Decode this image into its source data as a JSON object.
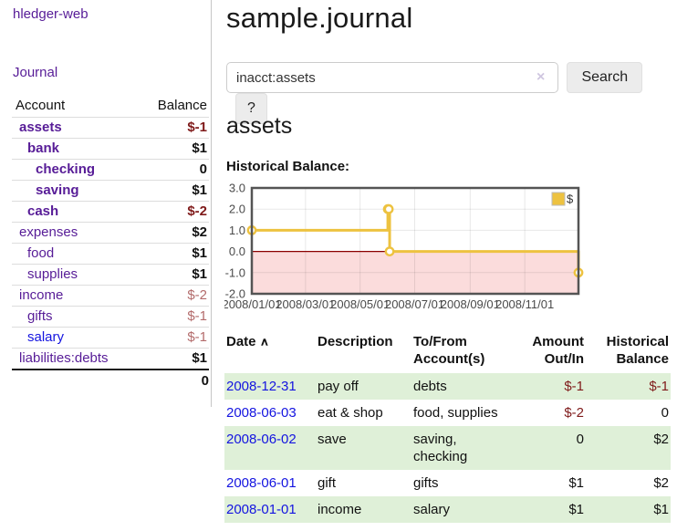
{
  "app": {
    "brand": "hledger-web"
  },
  "colors": {
    "link_purple": "#571c97",
    "link_blue": "#1414e0",
    "negative_dark": "#7f1a1a",
    "negative_soft": "#b36b6b",
    "row_green": "#dff0d8",
    "button_bg": "#ececec",
    "chart_gold": "#edc240"
  },
  "sidebar": {
    "journal_link": "Journal",
    "accounts": {
      "col_account": "Account",
      "col_balance": "Balance",
      "rows": [
        {
          "account": "assets",
          "depth": 1,
          "bold": true,
          "blue": false,
          "balance": "$-1",
          "balance_class": "bneg"
        },
        {
          "account": "bank",
          "depth": 2,
          "bold": true,
          "blue": false,
          "balance": "$1",
          "balance_class": "bpos"
        },
        {
          "account": "checking",
          "depth": 3,
          "bold": true,
          "blue": false,
          "balance": "0",
          "balance_class": "bpos"
        },
        {
          "account": "saving",
          "depth": 3,
          "bold": true,
          "blue": false,
          "balance": "$1",
          "balance_class": "bpos"
        },
        {
          "account": "cash",
          "depth": 2,
          "bold": true,
          "blue": false,
          "balance": "$-2",
          "balance_class": "bneg"
        },
        {
          "account": "expenses",
          "depth": 1,
          "bold": false,
          "blue": false,
          "balance": "$2",
          "balance_class": "pos"
        },
        {
          "account": "food",
          "depth": 2,
          "bold": false,
          "blue": false,
          "balance": "$1",
          "balance_class": "pos"
        },
        {
          "account": "supplies",
          "depth": 2,
          "bold": false,
          "blue": false,
          "balance": "$1",
          "balance_class": "pos"
        },
        {
          "account": "income",
          "depth": 1,
          "bold": false,
          "blue": false,
          "balance": "$-2",
          "balance_class": "negsoft"
        },
        {
          "account": "gifts",
          "depth": 2,
          "bold": false,
          "blue": false,
          "balance": "$-1",
          "balance_class": "negsoft"
        },
        {
          "account": "salary",
          "depth": 2,
          "bold": false,
          "blue": true,
          "balance": "$-1",
          "balance_class": "negsoft"
        },
        {
          "account": "liabilities:debts",
          "depth": 1,
          "bold": false,
          "blue": false,
          "balance": "$1",
          "balance_class": "pos"
        }
      ],
      "total": "0"
    }
  },
  "main": {
    "title": "sample.journal",
    "search": {
      "value": "inacct:assets",
      "clear_icon": "×",
      "search_button": "Search",
      "help_button": "?"
    },
    "account_heading": "assets",
    "chart_heading": "Historical Balance:",
    "register": {
      "columns": {
        "date": "Date",
        "description": "Description",
        "accounts": "To/From Account(s)",
        "amount": "Amount Out/In",
        "balance": "Historical Balance"
      },
      "sort_indicator": "∧",
      "rows": [
        {
          "date": "2008-12-31",
          "description": "pay off",
          "accounts": "debts",
          "amount": "$-1",
          "amount_neg": true,
          "balance": "$-1",
          "balance_neg": true
        },
        {
          "date": "2008-06-03",
          "description": "eat & shop",
          "accounts": "food, supplies",
          "amount": "$-2",
          "amount_neg": true,
          "balance": "0",
          "balance_neg": false
        },
        {
          "date": "2008-06-02",
          "description": "save",
          "accounts": "saving, checking",
          "amount": "0",
          "amount_neg": false,
          "balance": "$2",
          "balance_neg": false
        },
        {
          "date": "2008-06-01",
          "description": "gift",
          "accounts": "gifts",
          "amount": "$1",
          "amount_neg": false,
          "balance": "$2",
          "balance_neg": false
        },
        {
          "date": "2008-01-01",
          "description": "income",
          "accounts": "salary",
          "amount": "$1",
          "amount_neg": false,
          "balance": "$1",
          "balance_neg": false
        }
      ]
    }
  },
  "chart_data": {
    "type": "line",
    "title": "Historical Balance:",
    "step": "after",
    "series": [
      {
        "name": "$",
        "color": "#edc240",
        "points": [
          [
            "2008-01-01",
            1
          ],
          [
            "2008-06-01",
            2
          ],
          [
            "2008-06-02",
            2
          ],
          [
            "2008-06-03",
            0
          ],
          [
            "2008-12-31",
            -1
          ]
        ]
      }
    ],
    "x_range": [
      "2008-01-01",
      "2008-12-31"
    ],
    "ylim": [
      -2,
      3
    ],
    "y_ticks": [
      "3.0",
      "2.0",
      "1.0",
      "0.0",
      "-1.0",
      "-2.0"
    ],
    "x_ticks": [
      "2008/01/01",
      "2008/03/01",
      "2008/05/01",
      "2008/07/01",
      "2008/09/01",
      "2008/11/01"
    ],
    "grid": true,
    "legend": {
      "label": "$",
      "position": "top-right"
    },
    "negative_region_color": "#fbdcdc",
    "zero_line_color": "#8b0000",
    "border_color": "#545454"
  }
}
